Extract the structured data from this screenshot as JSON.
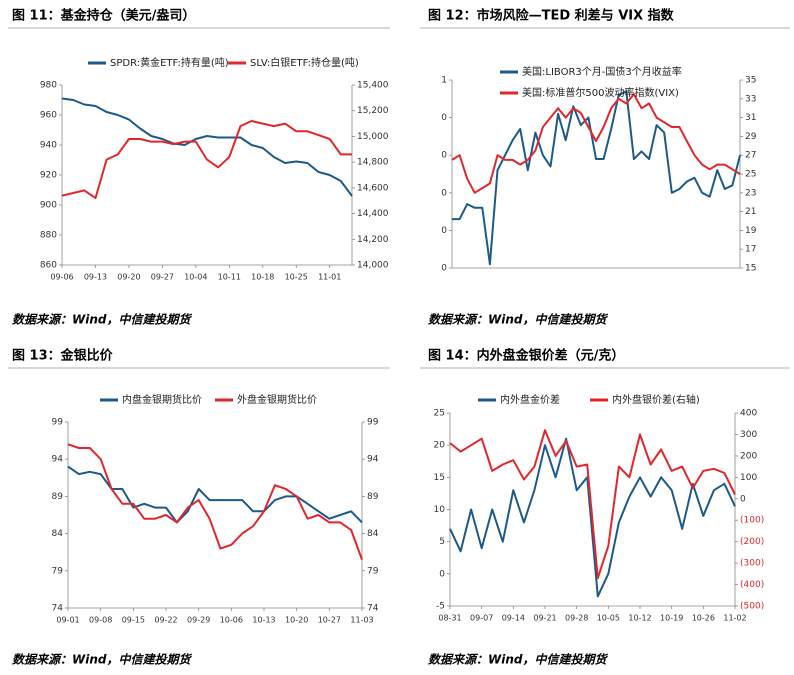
{
  "chart_data": [
    {
      "type": "line",
      "title": "图 11：基金持仓（美元/盎司）",
      "source": "数据来源：Wind，中信建投期货",
      "categories": [
        "09-06",
        null,
        null,
        "09-13",
        null,
        null,
        "09-20",
        null,
        null,
        "09-27",
        null,
        null,
        "10-04",
        null,
        null,
        "10-11",
        null,
        null,
        "10-18",
        null,
        null,
        "10-25",
        null,
        null,
        "11-01",
        null,
        null
      ],
      "series": [
        {
          "name": "SPDR:黄金ETF:持有量(吨)",
          "color": "#1b5a8a",
          "values": [
            971,
            970,
            967,
            966,
            962,
            960,
            957,
            951,
            946,
            944,
            941,
            940,
            944,
            946,
            945,
            945,
            945,
            940,
            938,
            932,
            928,
            929,
            928,
            922,
            920,
            916,
            906
          ]
        },
        {
          "name": "SLV:白银ETF:持仓量(吨)",
          "color": "#e3262b",
          "axis": "y2",
          "values": [
            14540,
            14560,
            14580,
            14520,
            14820,
            14860,
            14980,
            14980,
            14960,
            14960,
            14940,
            14960,
            14960,
            14820,
            14760,
            14840,
            15080,
            15120,
            15100,
            15080,
            15100,
            15040,
            15040,
            15010,
            14980,
            14860,
            14860
          ]
        }
      ],
      "ylim": [
        860,
        980
      ],
      "yticks": [
        860,
        880,
        900,
        920,
        940,
        960,
        980
      ],
      "y2lim": [
        14000,
        15400
      ],
      "y2ticks": [
        {
          "value": 14000,
          "label": "14,000"
        },
        {
          "value": 14200,
          "label": "14,200"
        },
        {
          "value": 14400,
          "label": "14,400"
        },
        {
          "value": 14600,
          "label": "14,600"
        },
        {
          "value": 14800,
          "label": "14,800"
        },
        {
          "value": 15000,
          "label": "15,000"
        },
        {
          "value": 15200,
          "label": "15,200"
        },
        {
          "value": 15400,
          "label": "15,400"
        }
      ],
      "legend": "top"
    },
    {
      "type": "line",
      "title": "图 12：市场风险—TED 利差与 VIX 指数",
      "source": "数据来源：Wind，中信建投期货",
      "series": [
        {
          "name": "美国:LIBOR3个月-国债3个月收益率",
          "color": "#1b5a8a",
          "values": [
            0.13,
            0.13,
            0.17,
            0.16,
            0.16,
            0.01,
            0.26,
            0.3,
            0.34,
            0.37,
            0.26,
            0.36,
            0.3,
            0.27,
            0.41,
            0.34,
            0.43,
            0.38,
            0.4,
            0.29,
            0.29,
            0.37,
            0.46,
            0.47,
            0.29,
            0.31,
            0.29,
            0.38,
            0.36,
            0.2,
            0.21,
            0.23,
            0.24,
            0.2,
            0.19,
            0.26,
            0.21,
            0.22,
            0.3
          ]
        },
        {
          "name": "美国:标准普尔500波动率指数(VIX)",
          "color": "#e3262b",
          "axis": "y2",
          "values": [
            26.5,
            27,
            24.5,
            23,
            23.5,
            24,
            27,
            26.5,
            26.5,
            26,
            26.5,
            27.5,
            30,
            31,
            32,
            31,
            32,
            31.5,
            30,
            28.5,
            30,
            32,
            33,
            32.5,
            33.5,
            32,
            32.5,
            31,
            30.5,
            30,
            30,
            28.5,
            27,
            26,
            25.5,
            26,
            26,
            25.5,
            25
          ]
        }
      ],
      "ylim": [
        0,
        0.5
      ],
      "yticks": [
        0,
        {
          "value": 0.1,
          "label": "0"
        },
        {
          "value": 0.2,
          "label": "0"
        },
        {
          "value": 0.3,
          "label": "0"
        },
        {
          "value": 0.4,
          "label": "0"
        },
        {
          "value": 0.5,
          "label": "1"
        }
      ],
      "y2lim": [
        15,
        35
      ],
      "y2ticks": [
        15,
        17,
        19,
        21,
        23,
        25,
        27,
        29,
        31,
        33,
        35
      ],
      "legend": "top-left"
    },
    {
      "type": "line",
      "title": "图 13：金银比价",
      "source": "数据来源：Wind，中信建投期货",
      "categories": [
        "09-01",
        null,
        null,
        "09-08",
        null,
        null,
        "09-15",
        null,
        null,
        "09-22",
        null,
        null,
        "09-29",
        null,
        null,
        "10-06",
        null,
        null,
        "10-13",
        null,
        null,
        "10-20",
        null,
        null,
        "10-27",
        null,
        null,
        "11-03"
      ],
      "series": [
        {
          "name": "内盘金银期货比价",
          "color": "#1b5a8a",
          "values": [
            93,
            92,
            92.3,
            92,
            90,
            90,
            87.5,
            88,
            87.5,
            87.5,
            85.5,
            87,
            90,
            88.5,
            88.5,
            88.5,
            88.5,
            87,
            87,
            88.5,
            89,
            89,
            88,
            87,
            86,
            86.5,
            87,
            85.5
          ]
        },
        {
          "name": "外盘金银期货比价",
          "color": "#e3262b",
          "axis": "y2",
          "values": [
            96,
            95.5,
            95.5,
            94,
            90,
            88,
            88,
            86,
            86,
            86.5,
            85.5,
            87.5,
            88.5,
            86,
            82,
            82.5,
            84,
            85,
            87,
            90.5,
            90,
            89,
            86,
            86.5,
            85.5,
            85.5,
            84.5,
            80.5
          ]
        }
      ],
      "ylim": [
        74,
        99
      ],
      "yticks": [
        74,
        79,
        84,
        89,
        94,
        99
      ],
      "y2lim": [
        74,
        99
      ],
      "y2ticks": [
        74,
        79,
        84,
        89,
        94,
        99
      ],
      "legend": "top"
    },
    {
      "type": "line",
      "title": "图 14：内外盘金银价差（元/克）",
      "source": "数据来源：Wind，中信建投期货",
      "categories": [
        "08-31",
        null,
        null,
        "09-07",
        null,
        null,
        "09-14",
        null,
        null,
        "09-21",
        null,
        null,
        "09-28",
        null,
        null,
        "10-05",
        null,
        null,
        "10-12",
        null,
        null,
        "10-19",
        null,
        null,
        "10-26",
        null,
        null,
        "11-02"
      ],
      "series": [
        {
          "name": "内外盘金价差",
          "color": "#1b5a8a",
          "values": [
            7,
            3.5,
            10,
            4,
            10,
            5,
            13,
            8,
            13,
            20,
            15,
            21,
            13,
            15,
            -3.5,
            0,
            8,
            12,
            15,
            12,
            15,
            13,
            7,
            14,
            9,
            13,
            14,
            10.5
          ]
        },
        {
          "name": "内外盘银价差(右轴)",
          "color": "#e3262b",
          "axis": "y2",
          "values": [
            260,
            220,
            250,
            280,
            130,
            160,
            180,
            90,
            150,
            320,
            200,
            270,
            150,
            160,
            -370,
            -220,
            150,
            100,
            300,
            160,
            230,
            130,
            150,
            50,
            130,
            140,
            120,
            20
          ]
        }
      ],
      "ylim": [
        -5,
        25
      ],
      "yticks": [
        -5,
        0,
        5,
        10,
        15,
        20,
        25
      ],
      "y2lim": [
        -500,
        400
      ],
      "y2ticks": [
        {
          "value": -500,
          "label": "(500)"
        },
        {
          "value": -400,
          "label": "(400)"
        },
        {
          "value": -300,
          "label": "(300)"
        },
        {
          "value": -200,
          "label": "(200)"
        },
        {
          "value": -100,
          "label": "(100)"
        },
        0,
        100,
        200,
        300,
        400
      ],
      "y2tick_negative_color": "#e3262b",
      "legend": "top"
    }
  ]
}
